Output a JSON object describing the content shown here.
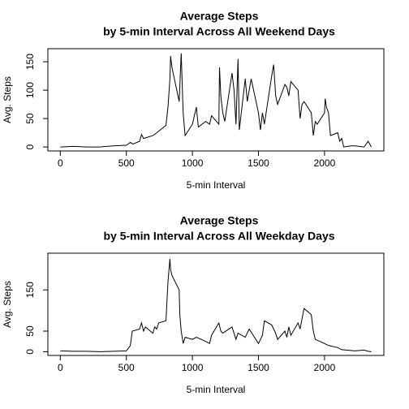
{
  "chart_data": [
    {
      "type": "line",
      "title": [
        "Average Steps",
        "by 5-min Interval Across All Weekend Days"
      ],
      "xlabel": "5-min Interval",
      "ylabel": "Avg. Steps",
      "color": "#000000",
      "x": [
        0,
        100,
        200,
        300,
        400,
        500,
        530,
        550,
        600,
        615,
        630,
        700,
        730,
        800,
        815,
        830,
        835,
        845,
        900,
        915,
        930,
        945,
        1000,
        1015,
        1030,
        1045,
        1100,
        1130,
        1145,
        1200,
        1205,
        1215,
        1230,
        1245,
        1300,
        1315,
        1330,
        1345,
        1355,
        1400,
        1415,
        1430,
        1445,
        1500,
        1515,
        1530,
        1545,
        1600,
        1615,
        1630,
        1645,
        1700,
        1715,
        1730,
        1745,
        1800,
        1815,
        1830,
        1845,
        1900,
        1915,
        1930,
        1945,
        2000,
        2005,
        2015,
        2030,
        2045,
        2100,
        2115,
        2130,
        2145,
        2200,
        2230,
        2300,
        2330,
        2355
      ],
      "values": [
        0,
        1,
        0,
        0,
        2,
        3,
        8,
        5,
        10,
        22,
        15,
        20,
        25,
        38,
        70,
        120,
        160,
        140,
        80,
        165,
        60,
        20,
        40,
        55,
        70,
        35,
        45,
        40,
        55,
        40,
        140,
        90,
        60,
        45,
        130,
        100,
        40,
        155,
        30,
        120,
        80,
        100,
        120,
        60,
        30,
        60,
        40,
        125,
        145,
        90,
        75,
        110,
        105,
        90,
        115,
        100,
        50,
        75,
        80,
        60,
        20,
        45,
        40,
        60,
        85,
        70,
        60,
        20,
        25,
        10,
        15,
        0,
        2,
        2,
        0,
        10,
        0
      ],
      "xlim": [
        -94,
        2449
      ],
      "xticks": [
        0,
        500,
        1000,
        1500,
        2000
      ],
      "ylim": [
        -7,
        173
      ],
      "yticks": [
        0,
        50,
        100,
        150
      ]
    },
    {
      "type": "line",
      "title": [
        "Average Steps",
        "by 5-min Interval Across All Weekday Days"
      ],
      "xlabel": "5-min Interval",
      "ylabel": "Avg. Steps",
      "color": "#000000",
      "x": [
        0,
        100,
        200,
        300,
        400,
        500,
        530,
        545,
        600,
        615,
        630,
        645,
        700,
        715,
        730,
        745,
        800,
        815,
        830,
        835,
        845,
        900,
        905,
        915,
        930,
        945,
        1000,
        1030,
        1100,
        1130,
        1145,
        1200,
        1215,
        1230,
        1300,
        1330,
        1345,
        1400,
        1430,
        1500,
        1530,
        1545,
        1600,
        1630,
        1645,
        1700,
        1715,
        1730,
        1745,
        1800,
        1815,
        1830,
        1845,
        1900,
        1915,
        1930,
        2000,
        2030,
        2100,
        2130,
        2200,
        2230,
        2300,
        2330,
        2355
      ],
      "values": [
        2,
        1,
        1,
        0,
        1,
        2,
        15,
        50,
        55,
        70,
        50,
        60,
        45,
        60,
        55,
        70,
        75,
        170,
        225,
        200,
        185,
        150,
        90,
        50,
        20,
        35,
        30,
        35,
        25,
        20,
        40,
        70,
        50,
        45,
        60,
        30,
        45,
        35,
        55,
        20,
        40,
        75,
        65,
        45,
        30,
        50,
        35,
        60,
        40,
        70,
        55,
        80,
        105,
        90,
        50,
        30,
        20,
        15,
        10,
        5,
        3,
        2,
        4,
        1,
        0
      ],
      "xlim": [
        -94,
        2449
      ],
      "xticks": [
        0,
        500,
        1000,
        1500,
        2000
      ],
      "ylim": [
        -9,
        239
      ],
      "yticks": [
        0,
        50,
        150
      ]
    }
  ]
}
